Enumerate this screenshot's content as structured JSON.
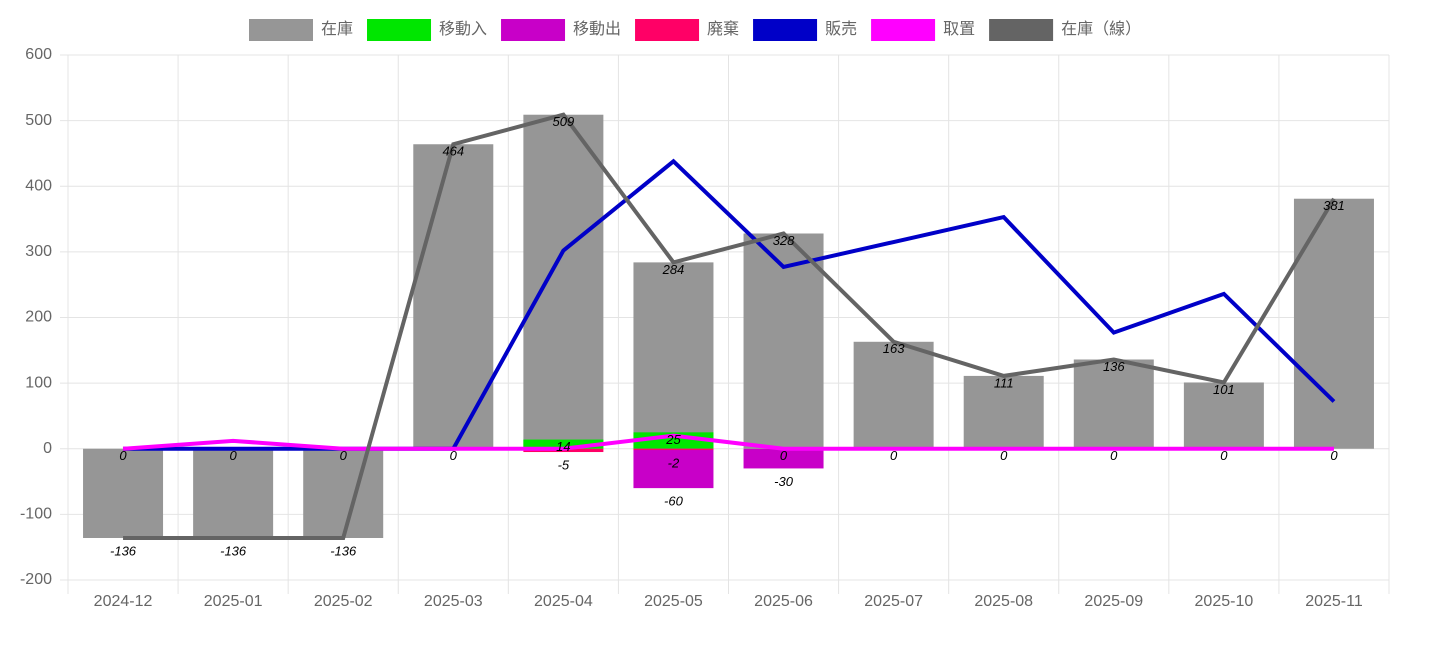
{
  "chart_data": {
    "type": "bar-line",
    "categories": [
      "2024-12",
      "2025-01",
      "2025-02",
      "2025-03",
      "2025-04",
      "2025-05",
      "2025-06",
      "2025-07",
      "2025-08",
      "2025-09",
      "2025-10",
      "2025-11"
    ],
    "series": [
      {
        "name": "在庫",
        "type": "bar",
        "color": "#969696",
        "values": [
          -136,
          -136,
          -136,
          464,
          509,
          284,
          328,
          163,
          111,
          136,
          101,
          381
        ]
      },
      {
        "name": "移動入",
        "type": "bar",
        "color": "#00e600",
        "values": [
          0,
          0,
          0,
          0,
          14,
          25,
          0,
          0,
          0,
          0,
          0,
          0
        ]
      },
      {
        "name": "移動出",
        "type": "bar",
        "color": "#c800c8",
        "values": [
          0,
          0,
          0,
          0,
          0,
          -60,
          -30,
          0,
          0,
          0,
          0,
          0
        ]
      },
      {
        "name": "廃棄",
        "type": "bar",
        "color": "#ff0066",
        "values": [
          0,
          0,
          0,
          0,
          -5,
          -2,
          0,
          0,
          0,
          0,
          0,
          0
        ]
      },
      {
        "name": "販売",
        "type": "line",
        "color": "#0000c8",
        "values": [
          0,
          0,
          0,
          0,
          302,
          438,
          277,
          315,
          353,
          177,
          236,
          72
        ]
      },
      {
        "name": "取置",
        "type": "line",
        "color": "#ff00ff",
        "values": [
          0,
          12,
          0,
          0,
          0,
          20,
          0,
          0,
          0,
          0,
          0,
          0
        ]
      },
      {
        "name": "在庫（線）",
        "type": "line",
        "color": "#646464",
        "values": [
          -136,
          -136,
          -136,
          464,
          509,
          284,
          328,
          163,
          111,
          136,
          101,
          381
        ]
      }
    ],
    "ylim": [
      -200,
      600
    ],
    "yticks": [
      -200,
      -100,
      0,
      100,
      200,
      300,
      400,
      500,
      600
    ],
    "grid": true
  }
}
